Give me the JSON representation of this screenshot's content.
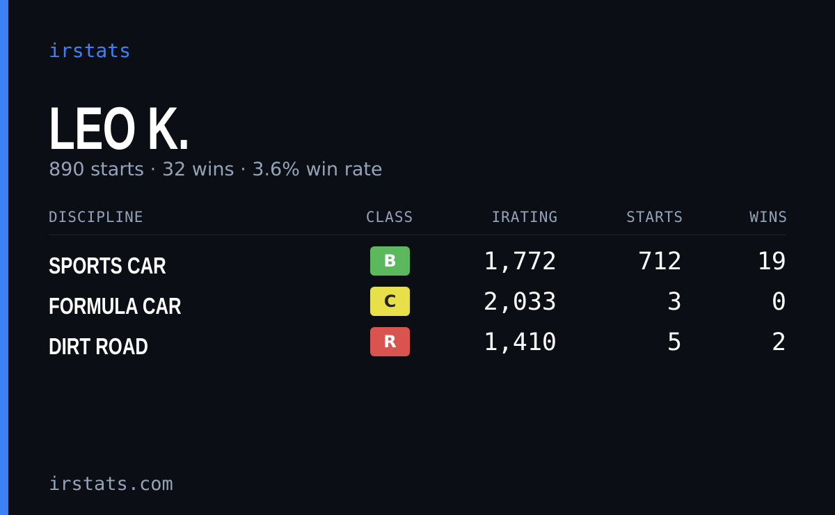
{
  "header": {
    "brand": "irstats",
    "name": "LEO K.",
    "summary": "890 starts · 32 wins · 3.6% win rate"
  },
  "table": {
    "columns": [
      "DISCIPLINE",
      "CLASS",
      "IRATING",
      "STARTS",
      "WINS"
    ],
    "rows": [
      [
        "SPORTS CAR",
        "B",
        "1,772",
        "712",
        "19"
      ],
      [
        "FORMULA CAR",
        "C",
        "2,033",
        "3",
        "0"
      ],
      [
        "DIRT ROAD",
        "R",
        "1,410",
        "5",
        "2"
      ]
    ]
  },
  "footer": {
    "url": "irstats.com"
  }
}
